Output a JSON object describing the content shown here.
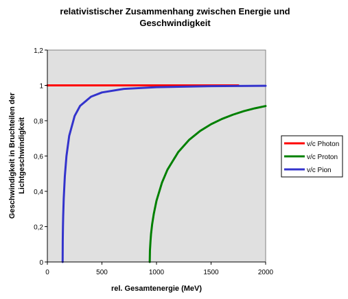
{
  "chart_data": {
    "type": "line",
    "title_lines": [
      "relativistischer Zusammenhang zwischen Energie und",
      "Geschwindigkeit"
    ],
    "xlabel": "rel. Gesamtenergie (MeV)",
    "ylabel_lines": [
      "Geschwindigkeit in Bruchteilen der",
      "Lichtgeschwindigkeit"
    ],
    "xlim": [
      0,
      2000
    ],
    "ylim": [
      0,
      1.2
    ],
    "x_ticks": [
      0,
      500,
      1000,
      1500,
      2000
    ],
    "x_tick_labels": [
      "0",
      "500",
      "1000",
      "1500",
      "2000"
    ],
    "y_ticks": [
      0,
      0.2,
      0.4,
      0.6,
      0.8,
      1,
      1.2
    ],
    "y_tick_labels": [
      "0",
      "0,2",
      "0,4",
      "0,6",
      "0,8",
      "1",
      "1,2"
    ],
    "grid": "horizontal gridline at y=1 only",
    "plot_background": "#e0e0e0",
    "legend_position": "right",
    "series": [
      {
        "name": "v/c Photon",
        "color": "#ff0000",
        "points": [
          [
            0,
            1
          ],
          [
            1750,
            1
          ]
        ]
      },
      {
        "name": "v/c Proton",
        "color": "#008000",
        "points": [
          [
            938,
            0
          ],
          [
            940,
            0.065
          ],
          [
            945,
            0.117
          ],
          [
            950,
            0.159
          ],
          [
            960,
            0.213
          ],
          [
            975,
            0.272
          ],
          [
            1000,
            0.347
          ],
          [
            1050,
            0.449
          ],
          [
            1100,
            0.522
          ],
          [
            1200,
            0.623
          ],
          [
            1300,
            0.692
          ],
          [
            1400,
            0.742
          ],
          [
            1500,
            0.78
          ],
          [
            1600,
            0.81
          ],
          [
            1700,
            0.834
          ],
          [
            1800,
            0.854
          ],
          [
            1900,
            0.87
          ],
          [
            2000,
            0.883
          ]
        ]
      },
      {
        "name": "v/c Pion",
        "color": "#3333cc",
        "points": [
          [
            140,
            0
          ],
          [
            141,
            0.119
          ],
          [
            143,
            0.204
          ],
          [
            145,
            0.26
          ],
          [
            150,
            0.359
          ],
          [
            160,
            0.484
          ],
          [
            175,
            0.6
          ],
          [
            200,
            0.714
          ],
          [
            250,
            0.827
          ],
          [
            300,
            0.884
          ],
          [
            400,
            0.936
          ],
          [
            500,
            0.96
          ],
          [
            700,
            0.98
          ],
          [
            1000,
            0.99
          ],
          [
            1500,
            0.9956
          ],
          [
            2000,
            0.9975
          ]
        ]
      }
    ]
  }
}
